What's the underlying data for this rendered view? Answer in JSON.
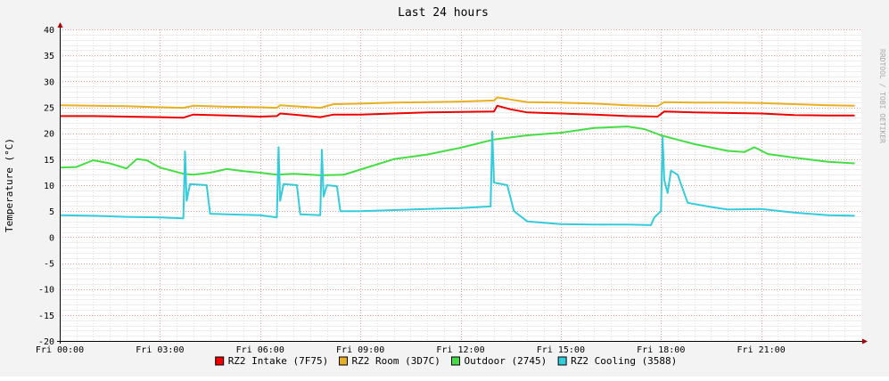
{
  "chart_data": {
    "type": "line",
    "title": "Last 24 hours",
    "ylabel": "Temperature (°C)",
    "xlabel": "",
    "watermark": "RRDTOOL / TOBI OETIKER",
    "ylim": [
      -20,
      40
    ],
    "xlim": [
      0,
      24
    ],
    "y_ticks": [
      40,
      35,
      30,
      25,
      20,
      15,
      10,
      5,
      0,
      -5,
      -10,
      -15,
      -20
    ],
    "x_ticks": [
      {
        "x": 0,
        "label": "Fri 00:00"
      },
      {
        "x": 3,
        "label": "Fri 03:00"
      },
      {
        "x": 6,
        "label": "Fri 06:00"
      },
      {
        "x": 9,
        "label": "Fri 09:00"
      },
      {
        "x": 12,
        "label": "Fri 12:00"
      },
      {
        "x": 15,
        "label": "Fri 15:00"
      },
      {
        "x": 18,
        "label": "Fri 18:00"
      },
      {
        "x": 21,
        "label": "Fri 21:00"
      }
    ],
    "grid": true,
    "legend_position": "bottom",
    "series": [
      {
        "name": "RZ2 Intake (7F75)",
        "color": "#ee0000",
        "points": [
          [
            0,
            23.3
          ],
          [
            1,
            23.3
          ],
          [
            2,
            23.2
          ],
          [
            3,
            23.1
          ],
          [
            3.7,
            23.0
          ],
          [
            4.0,
            23.6
          ],
          [
            5,
            23.4
          ],
          [
            6,
            23.2
          ],
          [
            6.5,
            23.3
          ],
          [
            6.6,
            23.8
          ],
          [
            7,
            23.6
          ],
          [
            7.8,
            23.1
          ],
          [
            8.2,
            23.6
          ],
          [
            9,
            23.6
          ],
          [
            10,
            23.8
          ],
          [
            11,
            24.0
          ],
          [
            12,
            24.1
          ],
          [
            13,
            24.2
          ],
          [
            13.1,
            25.3
          ],
          [
            13.5,
            24.6
          ],
          [
            14,
            24.0
          ],
          [
            15,
            23.8
          ],
          [
            16,
            23.6
          ],
          [
            17,
            23.3
          ],
          [
            17.9,
            23.2
          ],
          [
            18.1,
            24.2
          ],
          [
            19,
            24.0
          ],
          [
            20,
            23.9
          ],
          [
            21,
            23.8
          ],
          [
            22,
            23.5
          ],
          [
            23,
            23.4
          ],
          [
            23.8,
            23.4
          ]
        ]
      },
      {
        "name": "RZ2 Room (3D7C)",
        "color": "#e8b020",
        "points": [
          [
            0,
            25.4
          ],
          [
            1,
            25.3
          ],
          [
            2,
            25.2
          ],
          [
            3,
            25.0
          ],
          [
            3.7,
            24.9
          ],
          [
            4.0,
            25.3
          ],
          [
            5,
            25.1
          ],
          [
            6,
            25.0
          ],
          [
            6.5,
            24.9
          ],
          [
            6.6,
            25.4
          ],
          [
            7,
            25.2
          ],
          [
            7.8,
            24.9
          ],
          [
            8.2,
            25.6
          ],
          [
            9,
            25.7
          ],
          [
            10,
            25.9
          ],
          [
            11,
            26.0
          ],
          [
            12,
            26.1
          ],
          [
            13,
            26.3
          ],
          [
            13.1,
            26.9
          ],
          [
            13.5,
            26.5
          ],
          [
            14,
            26.0
          ],
          [
            15,
            25.9
          ],
          [
            16,
            25.7
          ],
          [
            17,
            25.4
          ],
          [
            17.9,
            25.2
          ],
          [
            18.1,
            26.0
          ],
          [
            19,
            25.9
          ],
          [
            20,
            25.9
          ],
          [
            21,
            25.8
          ],
          [
            22,
            25.6
          ],
          [
            23,
            25.4
          ],
          [
            23.8,
            25.3
          ]
        ]
      },
      {
        "name": "Outdoor (2745)",
        "color": "#44dd44",
        "points": [
          [
            0,
            13.4
          ],
          [
            0.5,
            13.5
          ],
          [
            1,
            14.8
          ],
          [
            1.5,
            14.2
          ],
          [
            2,
            13.2
          ],
          [
            2.3,
            15.0
          ],
          [
            2.6,
            14.8
          ],
          [
            3,
            13.4
          ],
          [
            3.7,
            12.2
          ],
          [
            4.0,
            12.0
          ],
          [
            4.5,
            12.4
          ],
          [
            5,
            13.1
          ],
          [
            5.5,
            12.7
          ],
          [
            6,
            12.4
          ],
          [
            6.5,
            12.0
          ],
          [
            7,
            12.2
          ],
          [
            7.8,
            11.9
          ],
          [
            8.5,
            12.0
          ],
          [
            9,
            13.0
          ],
          [
            10,
            15.0
          ],
          [
            11,
            15.9
          ],
          [
            12,
            17.2
          ],
          [
            13,
            18.8
          ],
          [
            14,
            19.6
          ],
          [
            15,
            20.1
          ],
          [
            16,
            21.0
          ],
          [
            17,
            21.3
          ],
          [
            17.5,
            20.8
          ],
          [
            18,
            19.6
          ],
          [
            19,
            17.9
          ],
          [
            20,
            16.6
          ],
          [
            20.5,
            16.4
          ],
          [
            20.8,
            17.3
          ],
          [
            21.2,
            16.0
          ],
          [
            22,
            15.3
          ],
          [
            23,
            14.5
          ],
          [
            23.8,
            14.2
          ]
        ]
      },
      {
        "name": "RZ2 Cooling (3588)",
        "color": "#33ccdd",
        "points": [
          [
            0,
            4.2
          ],
          [
            1,
            4.1
          ],
          [
            2,
            3.9
          ],
          [
            3,
            3.8
          ],
          [
            3.7,
            3.6
          ],
          [
            3.75,
            16.5
          ],
          [
            3.8,
            7.0
          ],
          [
            3.9,
            10.2
          ],
          [
            4.4,
            10.0
          ],
          [
            4.5,
            4.5
          ],
          [
            5,
            4.4
          ],
          [
            6,
            4.2
          ],
          [
            6.5,
            3.8
          ],
          [
            6.55,
            17.3
          ],
          [
            6.6,
            7.0
          ],
          [
            6.7,
            10.2
          ],
          [
            7.1,
            10.0
          ],
          [
            7.2,
            4.4
          ],
          [
            7.8,
            4.2
          ],
          [
            7.85,
            16.8
          ],
          [
            7.9,
            7.8
          ],
          [
            8.0,
            10.0
          ],
          [
            8.3,
            9.8
          ],
          [
            8.4,
            5.0
          ],
          [
            9,
            5.0
          ],
          [
            10,
            5.2
          ],
          [
            11,
            5.4
          ],
          [
            12,
            5.6
          ],
          [
            12.9,
            5.9
          ],
          [
            12.95,
            20.3
          ],
          [
            13.0,
            10.5
          ],
          [
            13.4,
            10.0
          ],
          [
            13.6,
            5.0
          ],
          [
            14,
            3.0
          ],
          [
            15,
            2.5
          ],
          [
            16,
            2.4
          ],
          [
            17,
            2.4
          ],
          [
            17.7,
            2.3
          ],
          [
            17.8,
            3.8
          ],
          [
            18.0,
            5.0
          ],
          [
            18.05,
            19.2
          ],
          [
            18.1,
            11.0
          ],
          [
            18.2,
            8.5
          ],
          [
            18.3,
            12.8
          ],
          [
            18.5,
            12.0
          ],
          [
            18.8,
            6.6
          ],
          [
            19.5,
            5.8
          ],
          [
            20,
            5.3
          ],
          [
            21,
            5.4
          ],
          [
            22,
            4.7
          ],
          [
            23,
            4.2
          ],
          [
            23.8,
            4.1
          ]
        ]
      }
    ]
  }
}
